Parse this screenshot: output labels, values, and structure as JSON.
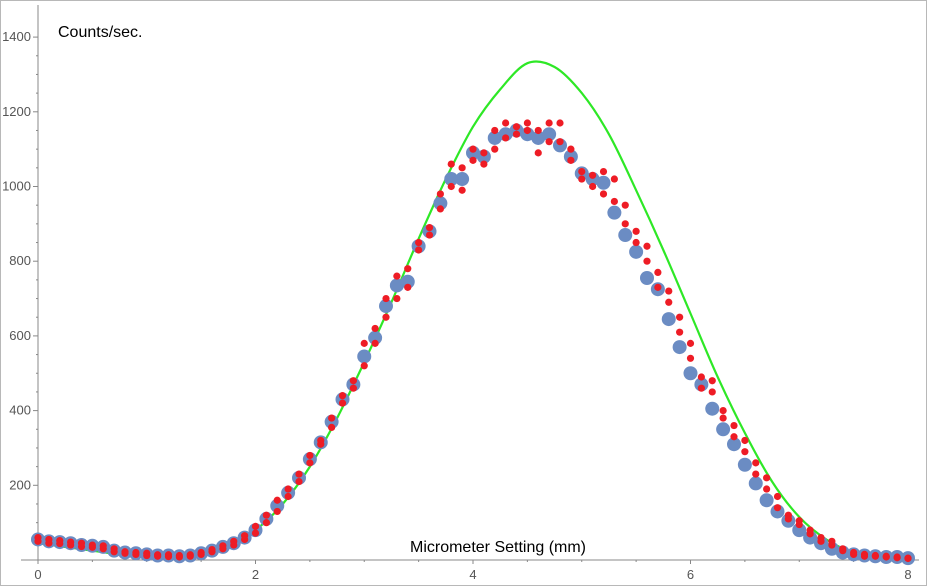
{
  "chart_data": {
    "type": "scatter",
    "title": "",
    "xlabel": "Micrometer Setting (mm)",
    "ylabel": "Counts/sec.",
    "xlim": [
      0,
      8
    ],
    "ylim": [
      0,
      1450
    ],
    "x_ticks": [
      "0",
      "2",
      "4",
      "6",
      "8"
    ],
    "y_ticks": [
      "200",
      "400",
      "600",
      "800",
      "1000",
      "1200",
      "1400"
    ],
    "grid": false,
    "legend": "none",
    "colors": {
      "mean_points": "#6b8cc3",
      "raw_points": "#ee1c25",
      "fit_curve": "#2ee826",
      "axis": "#888888"
    },
    "series": [
      {
        "kind": "points-large",
        "x": [
          0.0,
          0.1,
          0.2,
          0.3,
          0.4,
          0.5,
          0.6,
          0.7,
          0.8,
          0.9,
          1.0,
          1.1,
          1.2,
          1.3,
          1.4,
          1.5,
          1.6,
          1.7,
          1.8,
          1.9,
          2.0,
          2.1,
          2.2,
          2.3,
          2.4,
          2.5,
          2.6,
          2.7,
          2.8,
          2.9,
          3.0,
          3.1,
          3.2,
          3.3,
          3.4,
          3.5,
          3.6,
          3.7,
          3.8,
          3.9,
          4.0,
          4.1,
          4.2,
          4.3,
          4.4,
          4.5,
          4.6,
          4.7,
          4.8,
          4.9,
          5.0,
          5.1,
          5.2,
          5.3,
          5.4,
          5.5,
          5.6,
          5.7,
          5.8,
          5.9,
          6.0,
          6.1,
          6.2,
          6.3,
          6.4,
          6.5,
          6.6,
          6.7,
          6.8,
          6.9,
          7.0,
          7.1,
          7.2,
          7.3,
          7.4,
          7.5,
          7.6,
          7.7,
          7.8,
          7.9,
          8.0
        ],
        "y": [
          55,
          50,
          48,
          45,
          40,
          38,
          35,
          25,
          20,
          18,
          15,
          12,
          12,
          10,
          12,
          18,
          25,
          35,
          45,
          60,
          80,
          110,
          145,
          180,
          220,
          270,
          315,
          370,
          430,
          470,
          545,
          595,
          680,
          735,
          745,
          840,
          880,
          955,
          1020,
          1020,
          1090,
          1080,
          1130,
          1140,
          1150,
          1140,
          1130,
          1140,
          1110,
          1080,
          1035,
          1020,
          1010,
          930,
          870,
          825,
          755,
          725,
          645,
          570,
          500,
          470,
          405,
          350,
          310,
          255,
          205,
          160,
          130,
          105,
          80,
          60,
          45,
          30,
          20,
          15,
          12,
          10,
          8,
          8,
          5
        ]
      },
      {
        "kind": "points-small",
        "x": [
          0.0,
          0.0,
          0.1,
          0.1,
          0.2,
          0.2,
          0.3,
          0.3,
          0.4,
          0.4,
          0.5,
          0.5,
          0.6,
          0.6,
          0.7,
          0.7,
          0.8,
          0.8,
          0.9,
          0.9,
          1.0,
          1.0,
          1.1,
          1.1,
          1.2,
          1.2,
          1.3,
          1.3,
          1.4,
          1.4,
          1.5,
          1.5,
          1.6,
          1.6,
          1.7,
          1.7,
          1.8,
          1.8,
          1.9,
          1.9,
          2.0,
          2.0,
          2.1,
          2.1,
          2.2,
          2.2,
          2.3,
          2.3,
          2.4,
          2.4,
          2.5,
          2.5,
          2.6,
          2.6,
          2.7,
          2.7,
          2.8,
          2.8,
          2.9,
          2.9,
          3.0,
          3.0,
          3.1,
          3.1,
          3.2,
          3.2,
          3.3,
          3.3,
          3.4,
          3.4,
          3.5,
          3.5,
          3.6,
          3.6,
          3.7,
          3.7,
          3.8,
          3.8,
          3.9,
          3.9,
          4.0,
          4.0,
          4.1,
          4.1,
          4.2,
          4.2,
          4.3,
          4.3,
          4.4,
          4.4,
          4.5,
          4.5,
          4.6,
          4.6,
          4.7,
          4.7,
          4.8,
          4.8,
          4.9,
          4.9,
          5.0,
          5.0,
          5.1,
          5.1,
          5.2,
          5.2,
          5.3,
          5.3,
          5.4,
          5.4,
          5.5,
          5.5,
          5.6,
          5.6,
          5.7,
          5.7,
          5.8,
          5.8,
          5.9,
          5.9,
          6.0,
          6.0,
          6.1,
          6.1,
          6.2,
          6.2,
          6.3,
          6.3,
          6.4,
          6.4,
          6.5,
          6.5,
          6.6,
          6.6,
          6.7,
          6.7,
          6.8,
          6.8,
          6.9,
          6.9,
          7.0,
          7.0,
          7.1,
          7.1,
          7.2,
          7.2,
          7.3,
          7.3,
          7.4,
          7.4,
          7.5,
          7.5,
          7.6,
          7.6,
          7.7,
          7.7,
          7.8,
          7.8,
          7.9,
          7.9,
          8.0,
          8.0
        ],
        "y": [
          60,
          50,
          55,
          45,
          52,
          44,
          48,
          40,
          45,
          36,
          40,
          34,
          38,
          30,
          30,
          22,
          22,
          18,
          20,
          15,
          18,
          12,
          14,
          10,
          14,
          9,
          12,
          8,
          14,
          10,
          20,
          15,
          28,
          22,
          38,
          30,
          50,
          40,
          65,
          55,
          90,
          72,
          120,
          100,
          160,
          130,
          190,
          170,
          230,
          210,
          280,
          260,
          320,
          310,
          380,
          355,
          440,
          420,
          480,
          460,
          580,
          520,
          620,
          580,
          700,
          650,
          760,
          700,
          780,
          730,
          850,
          830,
          890,
          870,
          980,
          940,
          1060,
          1000,
          1050,
          990,
          1100,
          1070,
          1090,
          1060,
          1150,
          1100,
          1170,
          1130,
          1160,
          1140,
          1170,
          1150,
          1150,
          1090,
          1170,
          1120,
          1170,
          1120,
          1100,
          1070,
          1040,
          1020,
          1030,
          1000,
          1040,
          980,
          1020,
          960,
          950,
          900,
          880,
          850,
          840,
          800,
          770,
          730,
          720,
          690,
          650,
          610,
          580,
          540,
          490,
          460,
          480,
          450,
          400,
          380,
          360,
          330,
          320,
          290,
          260,
          230,
          220,
          190,
          170,
          140,
          120,
          110,
          105,
          95,
          80,
          70,
          60,
          50,
          50,
          40,
          30,
          25,
          20,
          15,
          15,
          10,
          12,
          10,
          10,
          8,
          8,
          6,
          5,
          4
        ]
      },
      {
        "kind": "fit-curve",
        "x": [
          0.0,
          0.25,
          0.5,
          0.75,
          1.0,
          1.25,
          1.5,
          1.75,
          2.0,
          2.25,
          2.5,
          2.75,
          3.0,
          3.25,
          3.5,
          3.75,
          4.0,
          4.25,
          4.5,
          4.75,
          5.0,
          5.25,
          5.5,
          5.75,
          6.0,
          6.25,
          6.5,
          6.75,
          7.0,
          7.25,
          7.5,
          7.75,
          8.0
        ],
        "y": [
          45,
          35,
          25,
          15,
          8,
          5,
          12,
          35,
          80,
          150,
          250,
          380,
          530,
          690,
          860,
          1020,
          1160,
          1260,
          1330,
          1320,
          1250,
          1140,
          990,
          830,
          660,
          490,
          340,
          210,
          115,
          55,
          20,
          8,
          5
        ]
      }
    ]
  }
}
